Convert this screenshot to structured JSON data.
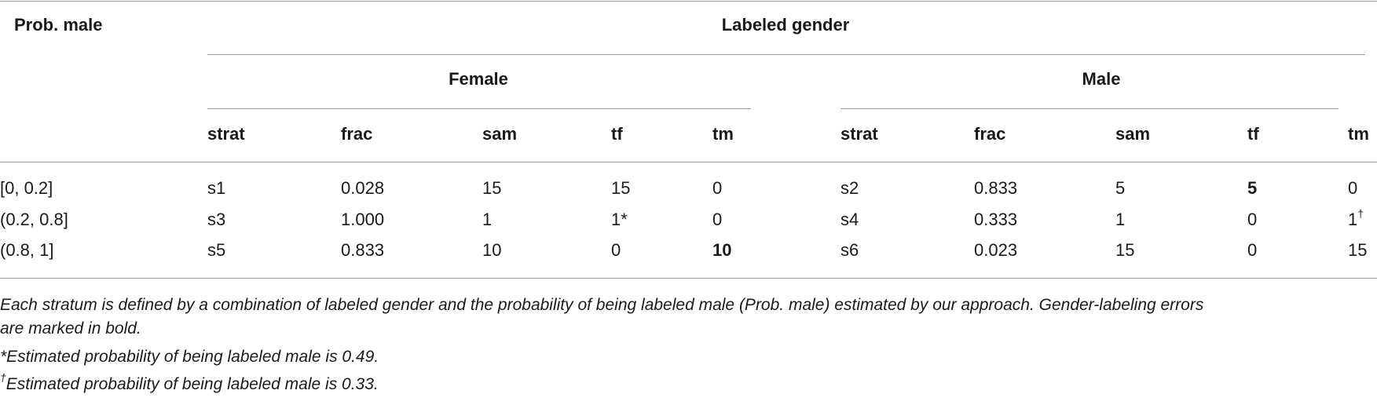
{
  "table": {
    "row_header": "Prob. male",
    "group_header": "Labeled gender",
    "female_header": "Female",
    "male_header": "Male",
    "columns": [
      "strat",
      "frac",
      "sam",
      "tf",
      "tm",
      "strat",
      "frac",
      "sam",
      "tf",
      "tm"
    ],
    "rows": [
      {
        "prob": "[0, 0.2]",
        "cells": [
          "s1",
          "0.028",
          "15",
          "15",
          "0",
          "s2",
          "0.833",
          "5",
          "5",
          "0"
        ],
        "bold": [
          8
        ],
        "marks": [
          "",
          "",
          "",
          "",
          "",
          "",
          "",
          "",
          "",
          ""
        ]
      },
      {
        "prob": "(0.2, 0.8]",
        "cells": [
          "s3",
          "1.000",
          "1",
          "1*",
          "0",
          "s4",
          "0.333",
          "1",
          "0",
          "1"
        ],
        "bold": [],
        "marks": [
          "",
          "",
          "",
          "",
          "",
          "",
          "",
          "",
          "",
          "†"
        ]
      },
      {
        "prob": "(0.8, 1]",
        "cells": [
          "s5",
          "0.833",
          "10",
          "0",
          "10",
          "s6",
          "0.023",
          "15",
          "0",
          "15"
        ],
        "bold": [
          4
        ],
        "marks": [
          "",
          "",
          "",
          "",
          "",
          "",
          "",
          "",
          "",
          ""
        ]
      }
    ]
  },
  "footnotes": {
    "main_line1": "Each stratum is defined by a combination of labeled gender and the probability of being labeled male (Prob. male) estimated by our approach. Gender-labeling errors",
    "main_line2": "are marked in bold.",
    "star": "*Estimated probability of being labeled male is 0.49.",
    "dagger_mark": "†",
    "dagger": "Estimated probability of being labeled male is 0.33."
  }
}
